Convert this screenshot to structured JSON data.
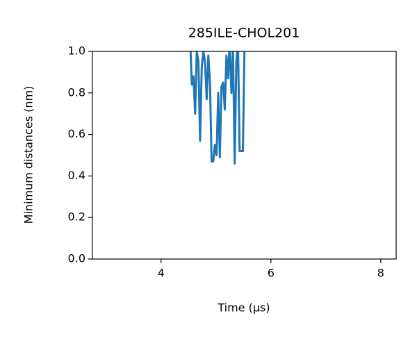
{
  "chart_data": {
    "type": "line",
    "title": "285ILE-CHOL201",
    "x_label": "Time (μs)",
    "y_label": "Minimum distances (nm)",
    "x": [
      4.53,
      4.56,
      4.59,
      4.62,
      4.65,
      4.68,
      4.71,
      4.74,
      4.77,
      4.8,
      4.83,
      4.86,
      4.89,
      4.92,
      4.95,
      4.98,
      5.01,
      5.04,
      5.07,
      5.1,
      5.13,
      5.16,
      5.19,
      5.22,
      5.25,
      5.28,
      5.31,
      5.34,
      5.37,
      5.4,
      5.43,
      5.46,
      5.49,
      5.52
    ],
    "series": [
      {
        "color": "#1f77b4",
        "values": [
          1.05,
          0.84,
          0.88,
          0.7,
          1.0,
          0.95,
          0.57,
          0.92,
          1.0,
          0.95,
          0.77,
          0.98,
          0.85,
          0.47,
          0.47,
          0.55,
          0.5,
          0.8,
          0.49,
          0.83,
          0.85,
          0.72,
          0.98,
          0.87,
          1.05,
          0.8,
          1.0,
          0.46,
          0.95,
          1.05,
          0.52,
          0.52,
          0.52,
          1.05
        ]
      }
    ],
    "xlim": [
      2.75,
      8.28
    ],
    "ylim": [
      0,
      1
    ],
    "xticks": [
      4,
      6,
      8
    ],
    "yticks": [
      {
        "value": 0,
        "label": "0.0"
      },
      {
        "value": 0.2,
        "label": "0.2"
      },
      {
        "value": 0.4,
        "label": "0.4"
      },
      {
        "value": 0.6,
        "label": "0.6"
      },
      {
        "value": 0.8,
        "label": "0.8"
      },
      {
        "value": 1,
        "label": "1.0"
      }
    ]
  }
}
